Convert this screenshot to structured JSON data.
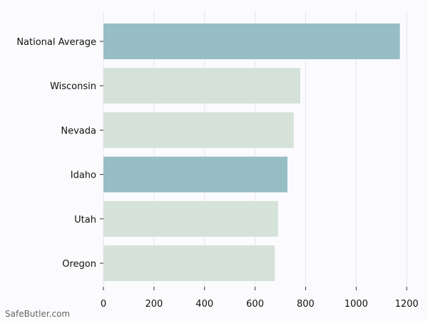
{
  "chart_data": {
    "type": "bar",
    "orientation": "horizontal",
    "categories": [
      "National Average",
      "Wisconsin",
      "Nevada",
      "Idaho",
      "Utah",
      "Oregon"
    ],
    "values": [
      1173,
      779,
      753,
      728,
      691,
      678
    ],
    "highlight_color": "#97bdc5",
    "base_color": "#d5e2d9",
    "highlighted": [
      "National Average",
      "Idaho"
    ],
    "xlim": [
      0,
      1250
    ],
    "xticks": [
      0,
      200,
      400,
      600,
      800,
      1000,
      1200
    ],
    "grid": true
  },
  "watermark": "SafeButler.com"
}
